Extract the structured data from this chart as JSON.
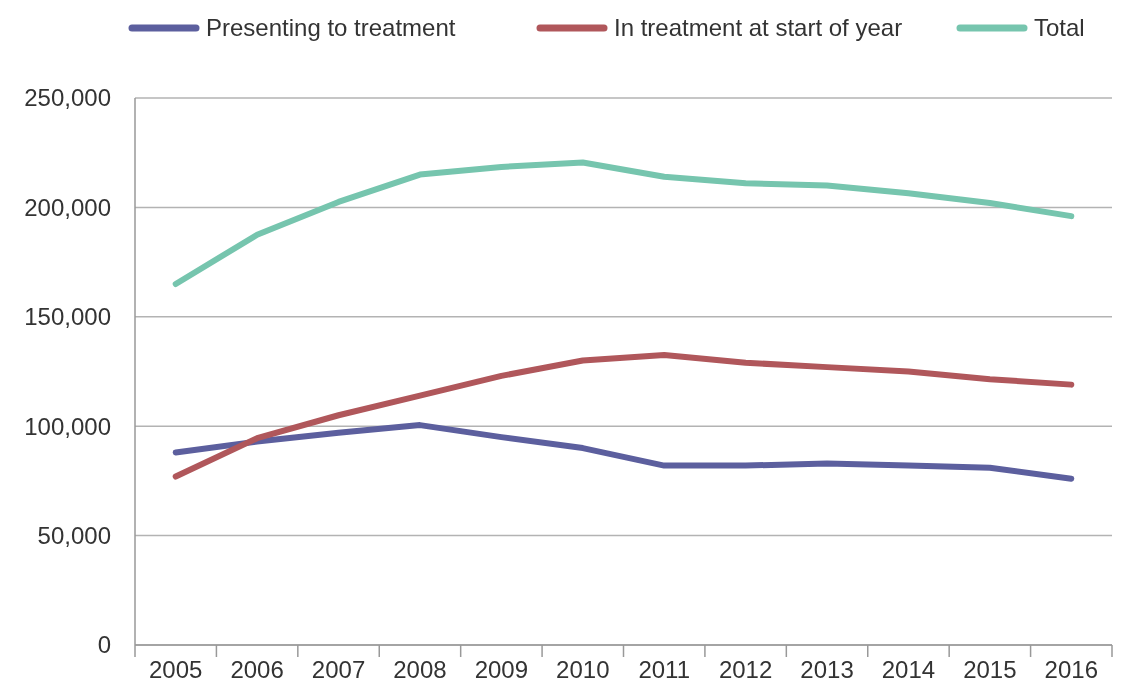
{
  "chart_data": {
    "type": "line",
    "categories": [
      "2005",
      "2006",
      "2007",
      "2008",
      "2009",
      "2010",
      "2011",
      "2012",
      "2013",
      "2014",
      "2015",
      "2016"
    ],
    "series": [
      {
        "name": "Presenting to treatment",
        "color": "#5c5f9e",
        "values": [
          88000,
          93000,
          97000,
          100500,
          95000,
          90000,
          82000,
          82000,
          83000,
          82000,
          81000,
          76000
        ]
      },
      {
        "name": "In treatment at start of year",
        "color": "#b0575b",
        "values": [
          77000,
          94500,
          105000,
          114000,
          123000,
          130000,
          132500,
          129000,
          127000,
          125000,
          121500,
          119000
        ]
      },
      {
        "name": "Total",
        "color": "#76c5ae",
        "values": [
          165000,
          187500,
          202500,
          215000,
          218500,
          220500,
          214000,
          211000,
          210000,
          206500,
          202000,
          196000
        ]
      }
    ],
    "ylim": [
      0,
      250000
    ],
    "yticks": [
      {
        "value": 0,
        "label": "0"
      },
      {
        "value": 50000,
        "label": "50,000"
      },
      {
        "value": 100000,
        "label": "100,000"
      },
      {
        "value": 150000,
        "label": "150,000"
      },
      {
        "value": 200000,
        "label": "200,000"
      },
      {
        "value": 250000,
        "label": "250,000"
      }
    ],
    "grid": "y",
    "legend": "top",
    "marker": "none",
    "line_style": "solid"
  }
}
